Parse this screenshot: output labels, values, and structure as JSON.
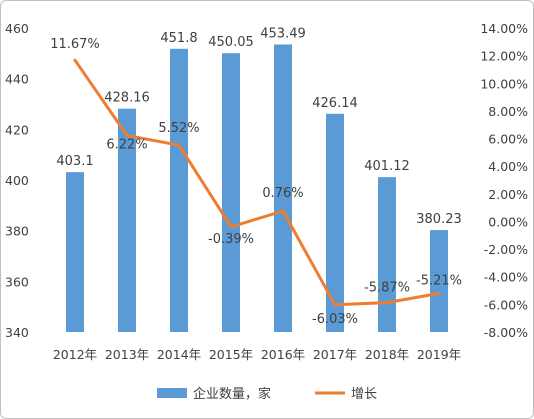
{
  "chart_data": {
    "type": "bar+line",
    "categories": [
      "2012年",
      "2013年",
      "2014年",
      "2015年",
      "2016年",
      "2017年",
      "2018年",
      "2019年"
    ],
    "series": [
      {
        "name": "企业数量，家",
        "type": "bar",
        "axis": "left",
        "color": "#5b9bd5",
        "values": [
          403.1,
          428.16,
          451.8,
          450.05,
          453.49,
          426.14,
          401.12,
          380.23
        ],
        "labels": [
          "403.1",
          "428.16",
          "451.8",
          "450.05",
          "453.49",
          "426.14",
          "401.12",
          "380.23"
        ]
      },
      {
        "name": "增长",
        "type": "line",
        "axis": "right",
        "color": "#ed7d31",
        "values": [
          11.67,
          6.22,
          5.52,
          -0.39,
          0.76,
          -6.03,
          -5.87,
          -5.21
        ],
        "labels": [
          "11.67%",
          "6.22%",
          "5.52%",
          "-0.39%",
          "0.76%",
          "-6.03%",
          "-5.87%",
          "-5.21%"
        ]
      }
    ],
    "y_left": {
      "ticks": [
        340,
        360,
        380,
        400,
        420,
        440,
        460
      ],
      "tick_labels": [
        "340",
        "360",
        "380",
        "400",
        "420",
        "440",
        "460"
      ],
      "ylim": [
        340,
        460
      ]
    },
    "y_right": {
      "ticks": [
        -8,
        -6,
        -4,
        -2,
        0,
        2,
        4,
        6,
        8,
        10,
        12,
        14
      ],
      "tick_labels": [
        "-8.00%",
        "-6.00%",
        "-4.00%",
        "-2.00%",
        "0.00%",
        "2.00%",
        "4.00%",
        "6.00%",
        "8.00%",
        "10.00%",
        "12.00%",
        "14.00%"
      ],
      "ylim": [
        -8,
        14
      ]
    },
    "grid": false,
    "legend_position": "bottom"
  }
}
